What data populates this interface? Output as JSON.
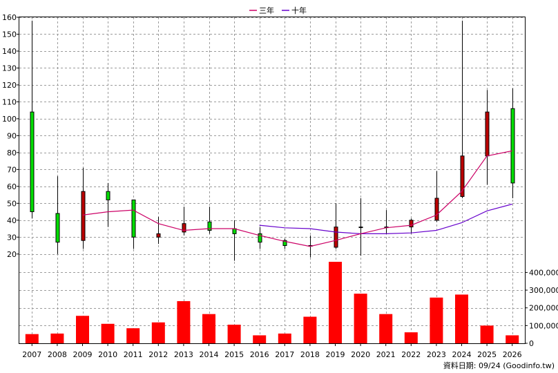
{
  "chart_data": {
    "type": "candlestick+bar",
    "legend": {
      "placement": "top-center",
      "items": [
        {
          "label": "三年",
          "color": "#cc0066"
        },
        {
          "label": "十年",
          "color": "#6600cc"
        }
      ]
    },
    "years": [
      "2007",
      "2008",
      "2009",
      "2010",
      "2011",
      "2012",
      "2013",
      "2014",
      "2015",
      "2016",
      "2017",
      "2018",
      "2019",
      "2020",
      "2021",
      "2022",
      "2023",
      "2024",
      "2025",
      "2026"
    ],
    "price_axis": {
      "min": 15,
      "max": 160,
      "ticks": [
        20,
        30,
        40,
        50,
        60,
        70,
        80,
        90,
        100,
        110,
        120,
        130,
        140,
        150,
        160
      ]
    },
    "volume_axis": {
      "min": 0,
      "max": 460000,
      "ticks": [
        0,
        100000,
        200000,
        300000,
        400000
      ],
      "tick_labels": [
        "0",
        "100,000",
        "200,000",
        "300,000",
        "400,000"
      ]
    },
    "candles": [
      {
        "year": "2007",
        "open": 104,
        "close": 45,
        "high": 158,
        "low": 41,
        "color": "#00dd00"
      },
      {
        "year": "2008",
        "open": 44,
        "close": 27,
        "high": 66,
        "low": 20,
        "color": "#00dd00"
      },
      {
        "year": "2009",
        "open": 28,
        "close": 57,
        "high": 71,
        "low": 23,
        "color": "#bb0000"
      },
      {
        "year": "2010",
        "open": 57,
        "close": 52,
        "high": 62,
        "low": 36,
        "color": "#00dd00"
      },
      {
        "year": "2011",
        "open": 52,
        "close": 30,
        "high": 52,
        "low": 23,
        "color": "#00dd00"
      },
      {
        "year": "2012",
        "open": 30,
        "close": 32,
        "high": 42,
        "low": 26,
        "color": "#bb0000"
      },
      {
        "year": "2013",
        "open": 33,
        "close": 38,
        "high": 48,
        "low": 31,
        "color": "#bb0000"
      },
      {
        "year": "2014",
        "open": 39,
        "close": 34,
        "high": 48,
        "low": 32,
        "color": "#00dd00"
      },
      {
        "year": "2015",
        "open": 35,
        "close": 32,
        "high": 40,
        "low": 16,
        "color": "#00dd00"
      },
      {
        "year": "2016",
        "open": 32,
        "close": 27,
        "high": 36,
        "low": 23,
        "color": "#00dd00"
      },
      {
        "year": "2017",
        "open": 28,
        "close": 25,
        "high": 29,
        "low": 23,
        "color": "#00dd00"
      },
      {
        "year": "2018",
        "open": 25,
        "close": 25,
        "high": 31,
        "low": 18,
        "color": "#00dd00"
      },
      {
        "year": "2019",
        "open": 24,
        "close": 36,
        "high": 50,
        "low": 23,
        "color": "#bb0000"
      },
      {
        "year": "2020",
        "open": 36,
        "close": 36,
        "high": 53,
        "low": 19,
        "color": "#bb0000"
      },
      {
        "year": "2021",
        "open": 36,
        "close": 36,
        "high": 46,
        "low": 32,
        "color": "#bb0000"
      },
      {
        "year": "2022",
        "open": 36,
        "close": 40,
        "high": 41,
        "low": 32,
        "color": "#bb0000"
      },
      {
        "year": "2023",
        "open": 40,
        "close": 53,
        "high": 69,
        "low": 39,
        "color": "#bb0000"
      },
      {
        "year": "2024",
        "open": 54,
        "close": 78,
        "high": 158,
        "low": 53,
        "color": "#bb0000"
      },
      {
        "year": "2025",
        "open": 78,
        "close": 104,
        "high": 117,
        "low": 61,
        "color": "#bb0000"
      },
      {
        "year": "2026",
        "open": 106,
        "close": 62,
        "high": 118,
        "low": 53,
        "color": "#00dd00"
      }
    ],
    "ma_3yr": [
      {
        "year": "2009",
        "value": 43
      },
      {
        "year": "2010",
        "value": 45
      },
      {
        "year": "2011",
        "value": 46
      },
      {
        "year": "2012",
        "value": 38
      },
      {
        "year": "2013",
        "value": 34
      },
      {
        "year": "2014",
        "value": 35
      },
      {
        "year": "2015",
        "value": 35
      },
      {
        "year": "2016",
        "value": 31
      },
      {
        "year": "2017",
        "value": 27.5
      },
      {
        "year": "2018",
        "value": 24.5
      },
      {
        "year": "2019",
        "value": 28
      },
      {
        "year": "2020",
        "value": 32
      },
      {
        "year": "2021",
        "value": 35.5
      },
      {
        "year": "2022",
        "value": 37
      },
      {
        "year": "2023",
        "value": 43
      },
      {
        "year": "2024",
        "value": 57
      },
      {
        "year": "2025",
        "value": 78
      },
      {
        "year": "2026",
        "value": 81
      }
    ],
    "ma_10yr": [
      {
        "year": "2016",
        "value": 37
      },
      {
        "year": "2017",
        "value": 35.5
      },
      {
        "year": "2018",
        "value": 35
      },
      {
        "year": "2019",
        "value": 33
      },
      {
        "year": "2020",
        "value": 32
      },
      {
        "year": "2021",
        "value": 32
      },
      {
        "year": "2022",
        "value": 32.5
      },
      {
        "year": "2023",
        "value": 34
      },
      {
        "year": "2024",
        "value": 38.5
      },
      {
        "year": "2025",
        "value": 45.5
      },
      {
        "year": "2026",
        "value": 49.5
      }
    ],
    "volume": {
      "color": "#ff0000",
      "values": [
        52000,
        55000,
        155000,
        110000,
        85000,
        118000,
        238000,
        165000,
        105000,
        45000,
        55000,
        150000,
        460000,
        280000,
        165000,
        62000,
        258000,
        275000,
        100000,
        45000
      ]
    }
  },
  "footer": {
    "source_label": "資料日期: 09/24 (Goodinfo.tw)"
  }
}
